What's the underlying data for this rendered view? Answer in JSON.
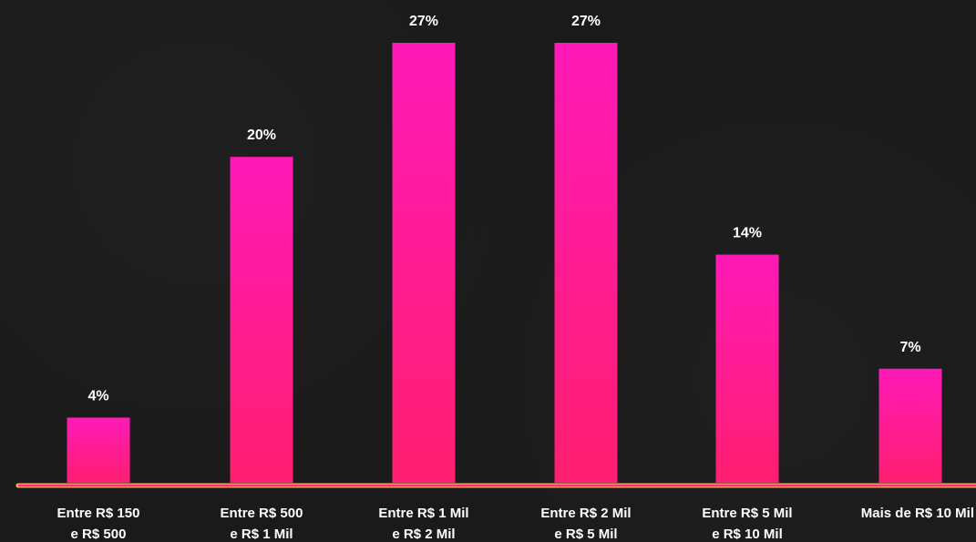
{
  "chart_data": {
    "type": "bar",
    "categories": [
      [
        "Entre R$ 150",
        "e R$ 500"
      ],
      [
        "Entre R$ 500",
        "e R$ 1 Mil"
      ],
      [
        "Entre R$ 1 Mil",
        "e R$ 2 Mil"
      ],
      [
        "Entre R$ 2 Mil",
        "e R$ 5 Mil"
      ],
      [
        "Entre R$ 5 Mil",
        "e R$ 10 Mil"
      ],
      [
        "Mais de  R$ 10 Mil"
      ]
    ],
    "values": [
      4,
      20,
      27,
      27,
      14,
      7
    ],
    "value_labels": [
      "4%",
      "20%",
      "27%",
      "27%",
      "14%",
      "7%"
    ],
    "unit": "%",
    "ylim": [
      0,
      27
    ],
    "title": "",
    "xlabel": "",
    "ylabel": "",
    "grid": false,
    "legend": "none",
    "colors": {
      "bar_top": "#ff1ab8",
      "bar_bottom": "#ff1f6f",
      "axis_line": "#ff2a86",
      "axis_highlight": "#ffb347",
      "text": "#ffffff",
      "background": "#1a1a1a"
    }
  }
}
